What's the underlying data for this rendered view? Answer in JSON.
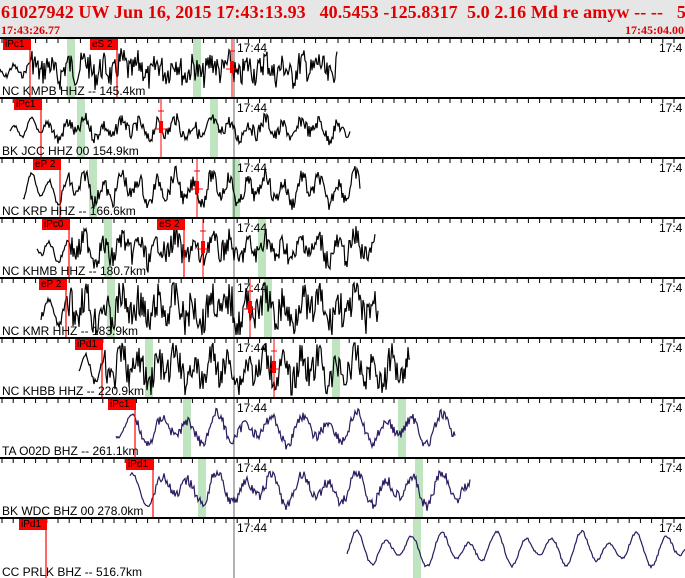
{
  "header": {
    "event_line": "61027942 UW Jun 16, 2015 17:43:13.93   40.5453 -125.8317  5.0 2.16 Md re amyw -- --   5",
    "start_time": "17:43:26.77",
    "end_time": "17:45:04.00"
  },
  "colors": {
    "pick": "#ff0000",
    "trace_hh": "#000000",
    "trace_bh": "#2a1a5e",
    "window": "#bfe5c0",
    "header_text": "#e00000"
  },
  "panels": [
    {
      "label": "NC KMPB HHZ -- 145.4km",
      "time_mark": "17:44",
      "time_mark_right": "17:4",
      "picks": [
        "iPc1",
        "eS 2"
      ]
    },
    {
      "label": "BK JCC HHZ 00 154.9km",
      "time_mark": "17:44",
      "time_mark_right": "17:4",
      "picks": [
        "iPc1"
      ]
    },
    {
      "label": "NC KRP HHZ -- 166.6km",
      "time_mark": "17:44",
      "time_mark_right": "17:4",
      "picks": [
        "eP 2"
      ]
    },
    {
      "label": "NC KHMB HHZ -- 180.7km",
      "time_mark": "17:44",
      "time_mark_right": "17:4",
      "picks": [
        "iPc0",
        "eS 2"
      ]
    },
    {
      "label": "NC KMR HHZ -- 183.9km",
      "time_mark": "17:44",
      "time_mark_right": "17:4",
      "picks": [
        "eP 2"
      ]
    },
    {
      "label": "NC KHBB HHZ -- 220.9km",
      "time_mark": "17:44",
      "time_mark_right": "17:4",
      "picks": [
        "iPd1"
      ]
    },
    {
      "label": "TA O02D BHZ -- 261.1km",
      "time_mark": "17:44",
      "time_mark_right": "17:4",
      "picks": [
        "iPc1"
      ]
    },
    {
      "label": "BK WDC BHZ 00 278.0km",
      "time_mark": "17:44",
      "time_mark_right": "17:4",
      "picks": [
        "iPd1"
      ]
    },
    {
      "label": "CC PRLK BHZ -- 516.7km",
      "time_mark": "17:44",
      "time_mark_right": "17:4",
      "picks": [
        "iPd1"
      ]
    }
  ]
}
